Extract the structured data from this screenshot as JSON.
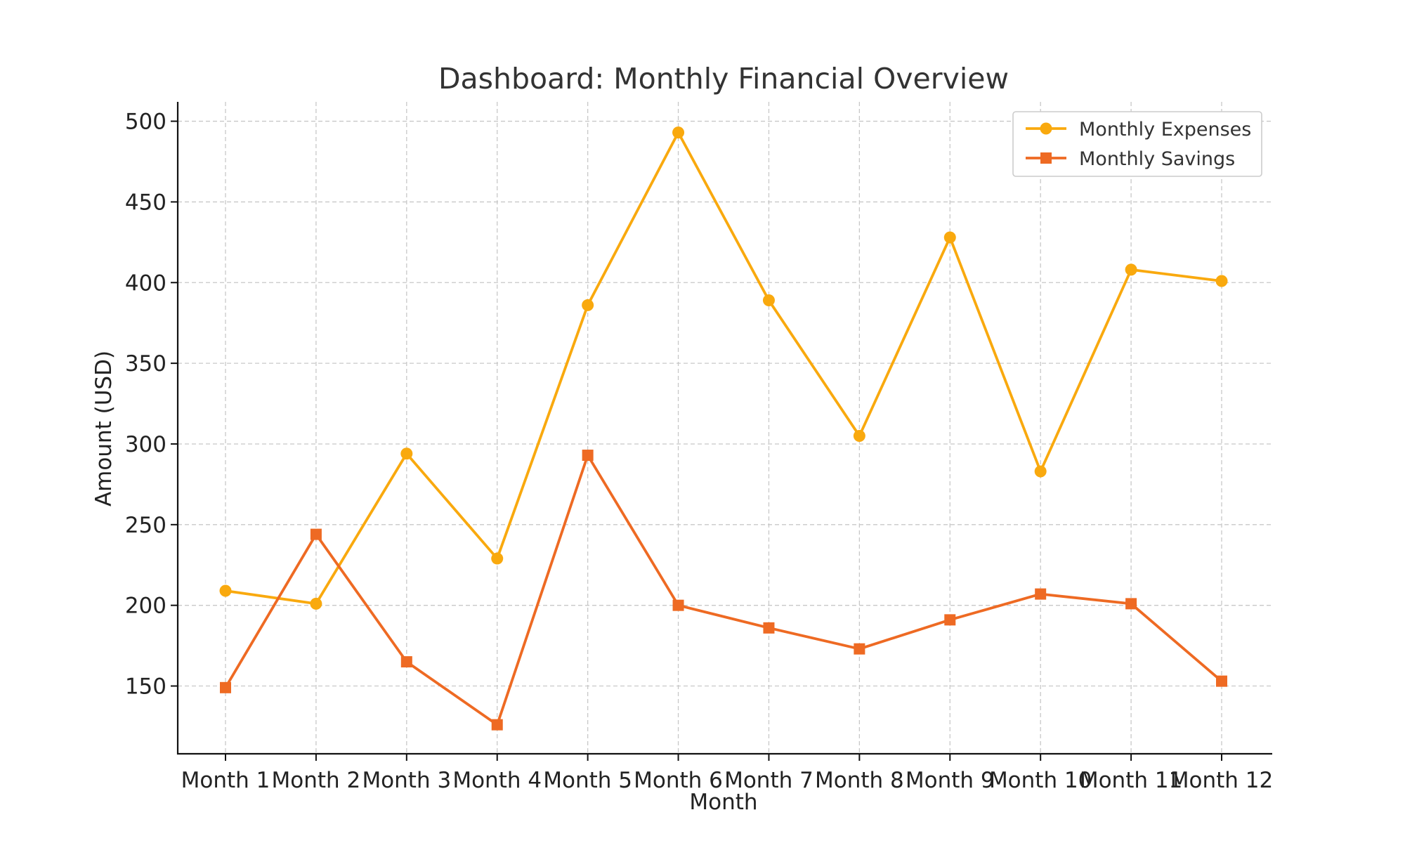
{
  "chart_data": {
    "type": "line",
    "title": "Dashboard: Monthly Financial Overview",
    "xlabel": "Month",
    "ylabel": "Amount (USD)",
    "categories": [
      "Month 1",
      "Month 2",
      "Month 3",
      "Month 4",
      "Month 5",
      "Month 6",
      "Month 7",
      "Month 8",
      "Month 9",
      "Month 10",
      "Month 11",
      "Month 12"
    ],
    "ylim": [
      108,
      512
    ],
    "yticks": [
      150,
      200,
      250,
      300,
      350,
      400,
      450,
      500
    ],
    "grid": true,
    "legend_position": "top-right",
    "series": [
      {
        "name": "Monthly Expenses",
        "marker": "circle",
        "color": "#F9A90E",
        "values": [
          209,
          201,
          294,
          229,
          386,
          493,
          389,
          305,
          428,
          283,
          408,
          401
        ]
      },
      {
        "name": "Monthly Savings",
        "marker": "square",
        "color": "#EE6A23",
        "values": [
          149,
          244,
          165,
          126,
          293,
          200,
          186,
          173,
          191,
          207,
          201,
          153
        ]
      }
    ]
  }
}
